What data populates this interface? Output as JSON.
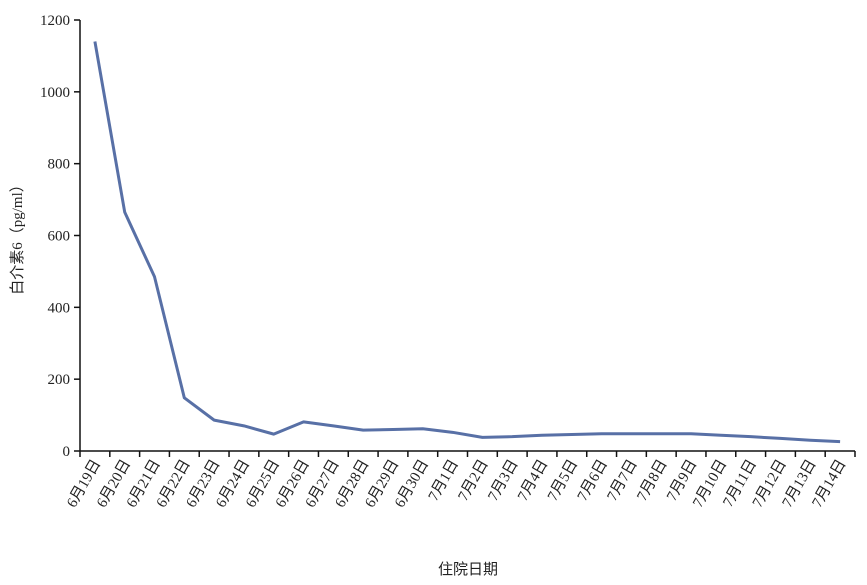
{
  "chart_data": {
    "type": "line",
    "x_label": "住院日期",
    "y_label": "白介素6（pg/ml）",
    "categories": [
      "6月19日",
      "6月20日",
      "6月21日",
      "6月22日",
      "6月23日",
      "6月24日",
      "6月25日",
      "6月26日",
      "6月27日",
      "6月28日",
      "6月29日",
      "6月30日",
      "7月1日",
      "7月2日",
      "7月3日",
      "7月4日",
      "7月5日",
      "7月6日",
      "7月7日",
      "7月8日",
      "7月9日",
      "7月10日",
      "7月11日",
      "7月12日",
      "7月13日",
      "7月14日"
    ],
    "series": [
      {
        "color": "#5870a6",
        "values": [
          1140,
          665,
          485,
          148,
          86,
          70,
          47,
          81,
          70,
          58,
          60,
          62,
          52,
          38,
          40,
          44,
          46,
          48,
          48,
          48,
          48,
          44,
          40,
          35,
          30,
          26
        ]
      }
    ],
    "ylim": [
      0,
      1200
    ],
    "yticks": [
      0,
      200,
      400,
      600,
      800,
      1000,
      1200
    ],
    "grid": false
  }
}
